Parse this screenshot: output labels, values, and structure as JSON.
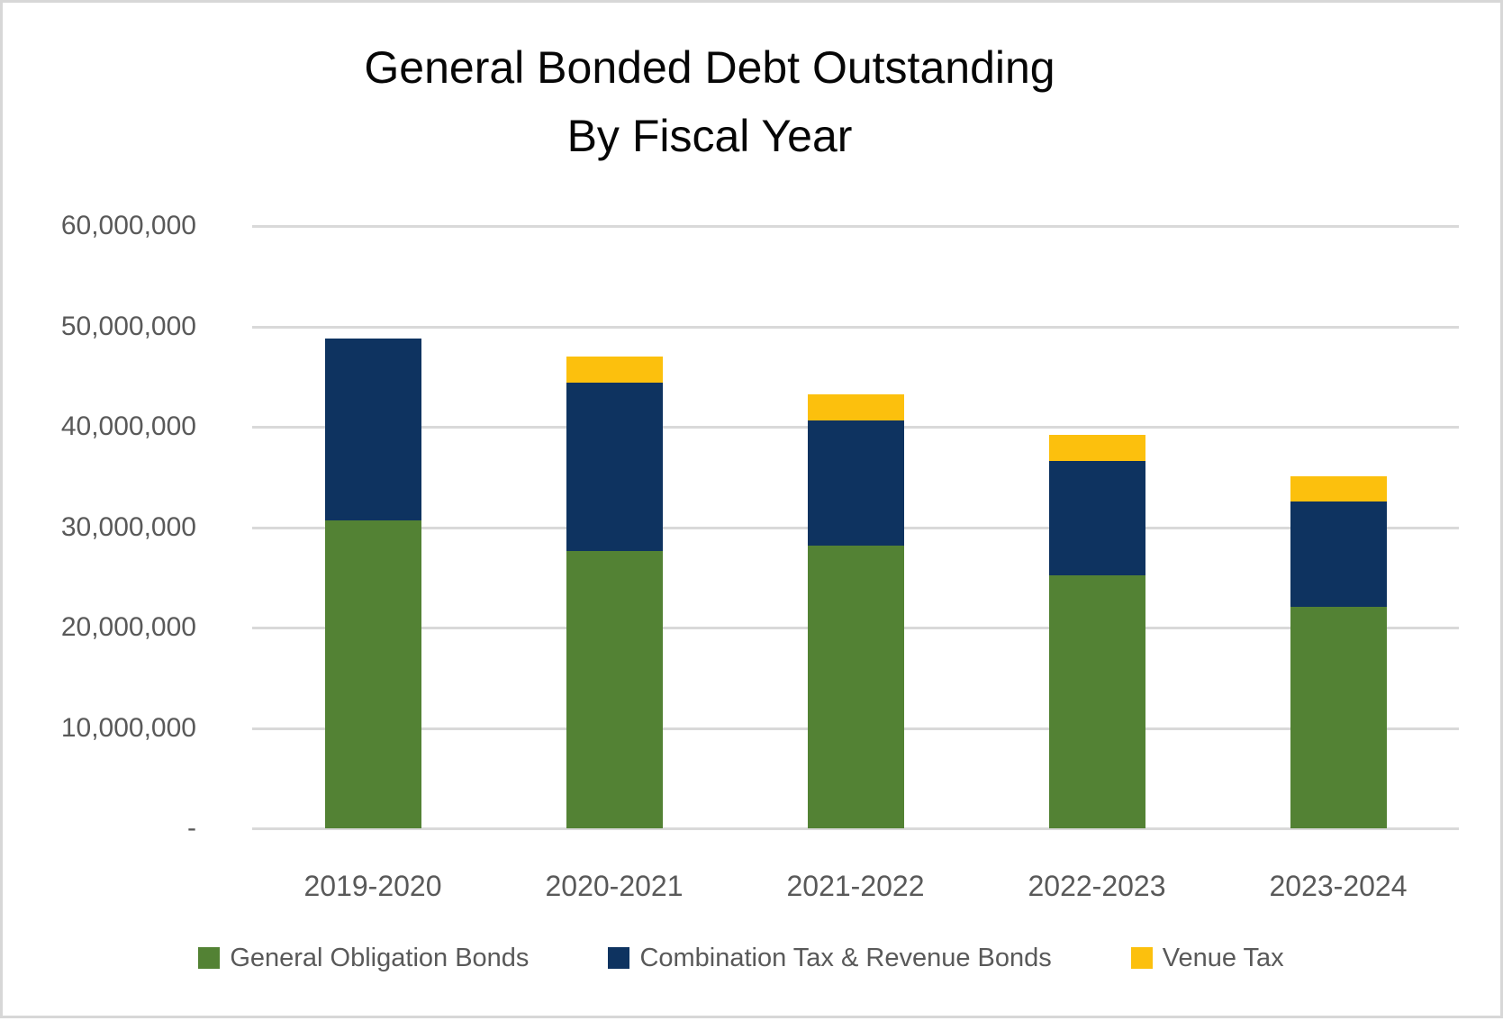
{
  "chart_data": {
    "type": "bar",
    "stacked": true,
    "title_line1": "General Bonded Debt Outstanding",
    "title_line2": "By Fiscal Year",
    "categories": [
      "2019-2020",
      "2020-2021",
      "2021-2022",
      "2022-2023",
      "2023-2024"
    ],
    "series": [
      {
        "name": "General Obligation Bonds",
        "color": "#538234",
        "values": [
          30700000,
          27600000,
          28200000,
          25200000,
          22100000
        ]
      },
      {
        "name": "Combination Tax & Revenue Bonds",
        "color": "#0e3360",
        "values": [
          18100000,
          16800000,
          12400000,
          11400000,
          10500000
        ]
      },
      {
        "name": "Venue Tax",
        "color": "#fcc00d",
        "values": [
          0,
          2600000,
          2600000,
          2600000,
          2500000
        ]
      }
    ],
    "totals": [
      48800000,
      47000000,
      43200000,
      39200000,
      35100000
    ],
    "y_axis": {
      "min": 0,
      "max": 60000000,
      "tick_interval": 10000000,
      "tick_labels_bottom_to_top": [
        "-",
        "10,000,000",
        "20,000,000",
        "30,000,000",
        "40,000,000",
        "50,000,000",
        "60,000,000"
      ]
    },
    "grid": "horizontal",
    "legend_position": "bottom"
  },
  "colors": {
    "background": "#ffffff",
    "frame_border": "#d7d7d7",
    "gridline": "#d9d9d9",
    "axis_text": "#595959",
    "title_text": "#060606"
  }
}
